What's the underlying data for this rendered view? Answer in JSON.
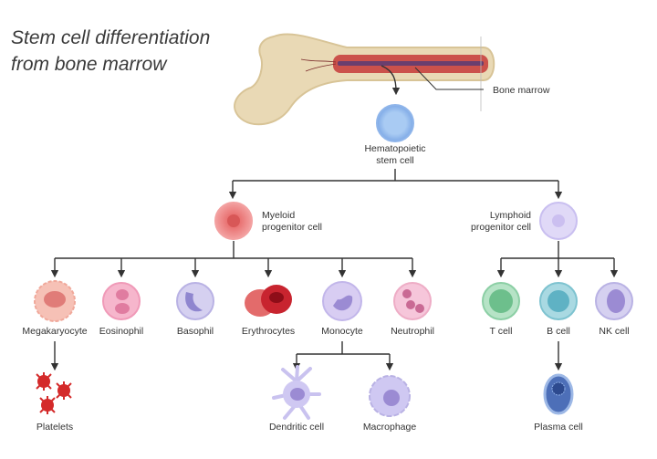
{
  "title": {
    "line1": "Stem cell differentiation",
    "line2": "from bone marrow"
  },
  "bone": {
    "label": "Bone marrow"
  },
  "stem": {
    "line1": "Hematopoietic",
    "line2": "stem cell"
  },
  "myeloid": {
    "line1": "Myeloid",
    "line2": "progenitor cell"
  },
  "lymphoid": {
    "line1": "Lymphoid",
    "line2": "progenitor cell"
  },
  "myeloid_children": [
    "Megakaryocyte",
    "Eosinophil",
    "Basophil",
    "Erythrocytes",
    "Monocyte",
    "Neutrophil"
  ],
  "lymphoid_children": [
    "T cell",
    "B cell",
    "NK cell"
  ],
  "derived": {
    "platelets": "Platelets",
    "dendritic": "Dendritic cell",
    "macrophage": "Macrophage",
    "plasma": "Plasma cell"
  },
  "colors": {
    "stem": "#9cc2f0",
    "myeloid": "#f08a8a",
    "lymphoid": "#d9d2f5",
    "bone": "#e9d9b5",
    "marrow": "#c8413f"
  }
}
